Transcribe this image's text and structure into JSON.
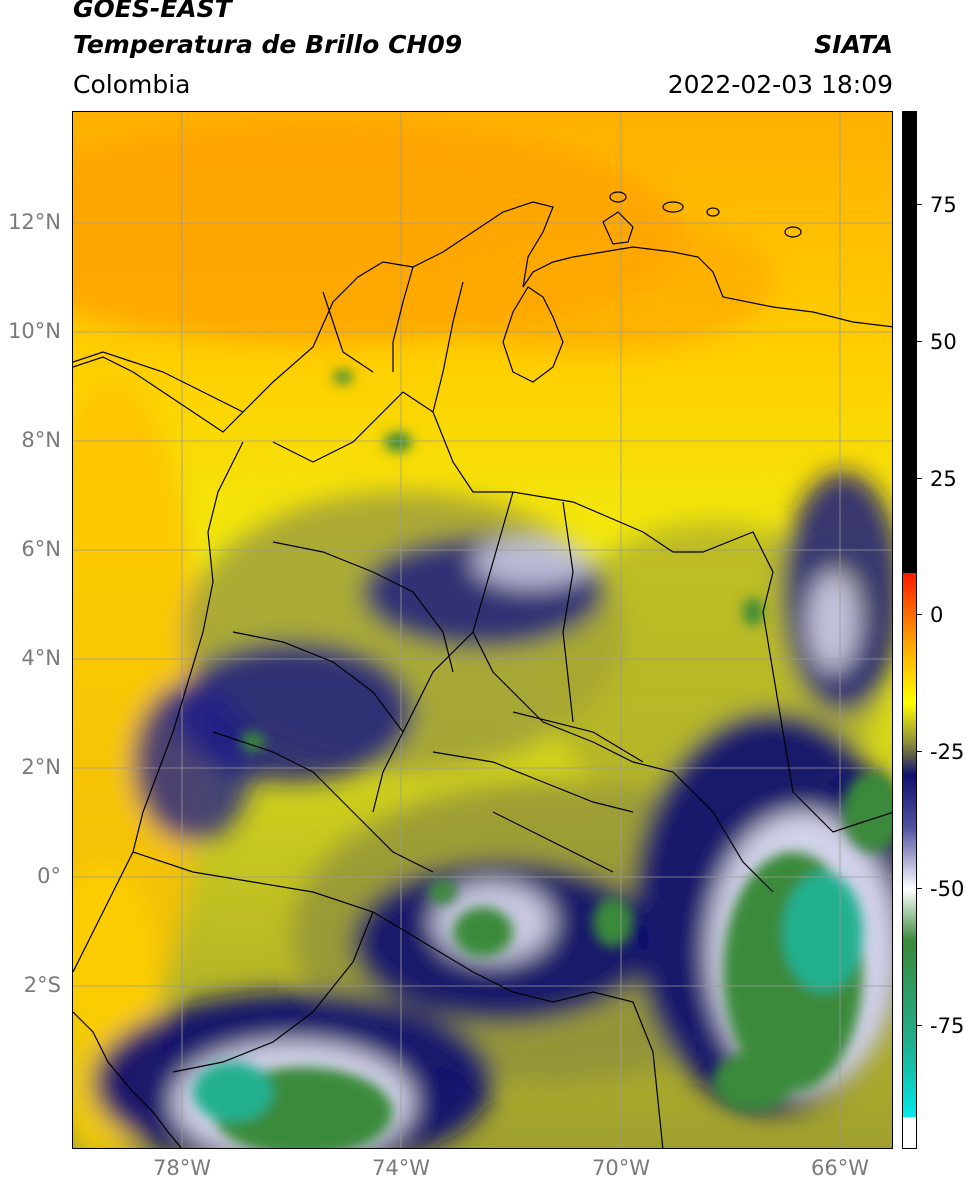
{
  "header": {
    "satellite": "GOES-EAST",
    "product": "Temperatura de Brillo CH09",
    "region": "Colombia",
    "agency": "SIATA",
    "datetime": "2022-02-03 18:09"
  },
  "map": {
    "lat_ticks": [
      "12°N",
      "10°N",
      "8°N",
      "6°N",
      "4°N",
      "2°N",
      "0°",
      "2°S"
    ],
    "lon_ticks": [
      "78°W",
      "74°W",
      "70°W",
      "66°W"
    ],
    "coastline_color": "#000000",
    "gridline_color": "#9a9a9a"
  },
  "colorbar": {
    "ticks": [
      "75",
      "50",
      "25",
      "0",
      "-25",
      "-50",
      "-75"
    ],
    "colors": {
      "warm_black": "#000000",
      "red": "#ff1a00",
      "orange": "#ffa000",
      "yellow": "#ffff00",
      "olive": "#8a8a3a",
      "navy": "#101070",
      "white": "#ffffff",
      "green": "#3a8a3a",
      "teal": "#20b090",
      "cyan": "#00e8e8"
    }
  }
}
